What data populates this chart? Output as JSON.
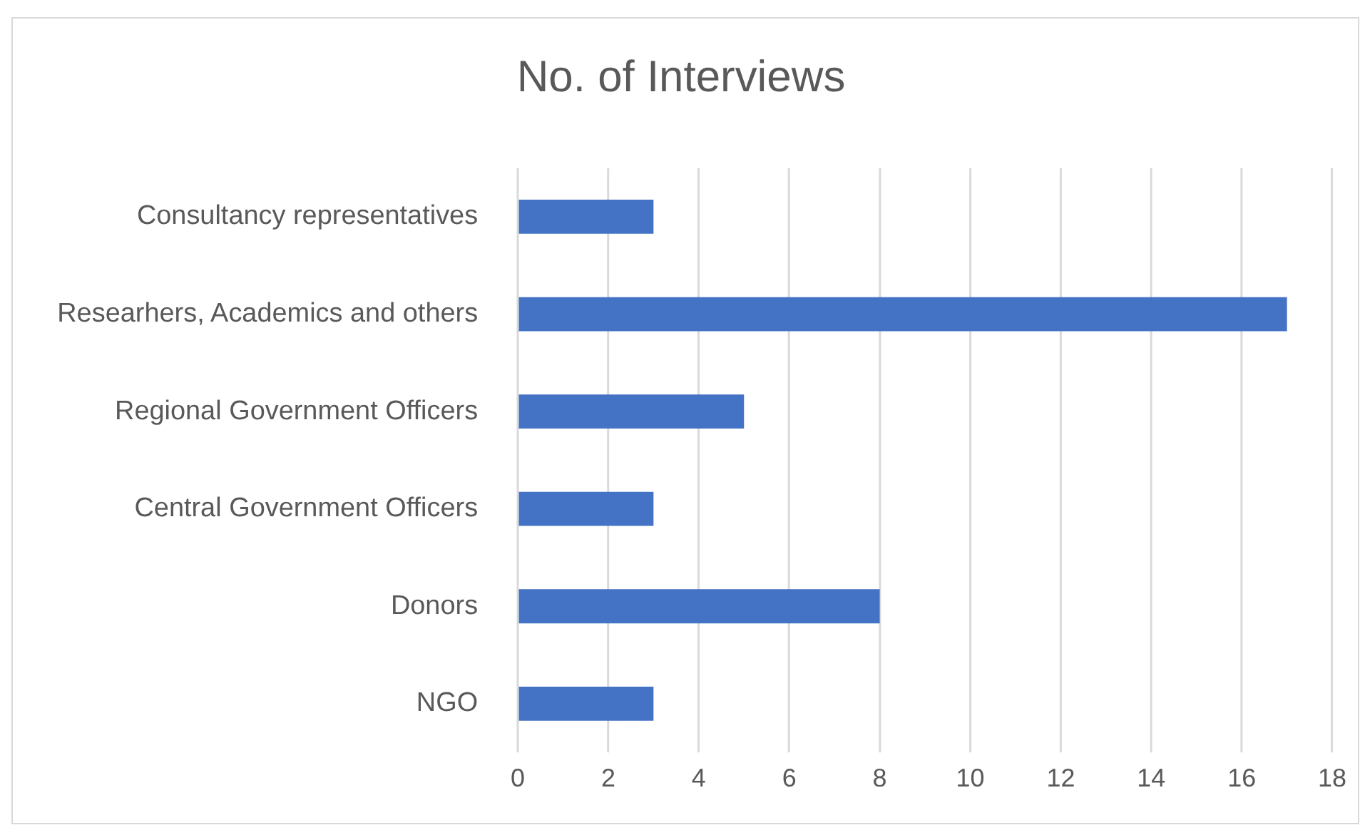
{
  "chart_data": {
    "type": "bar",
    "orientation": "horizontal",
    "title": "No. of Interviews",
    "categories": [
      "Consultancy representatives",
      "Researhers, Academics and others",
      "Regional Government Officers",
      "Central Government Officers",
      "Donors",
      "NGO"
    ],
    "values": [
      3,
      17,
      5,
      3,
      8,
      3
    ],
    "color": "#4472c4",
    "xlim": [
      0,
      18
    ],
    "xticks": [
      0,
      2,
      4,
      6,
      8,
      10,
      12,
      14,
      16,
      18
    ],
    "grid": "x",
    "legend": false
  }
}
